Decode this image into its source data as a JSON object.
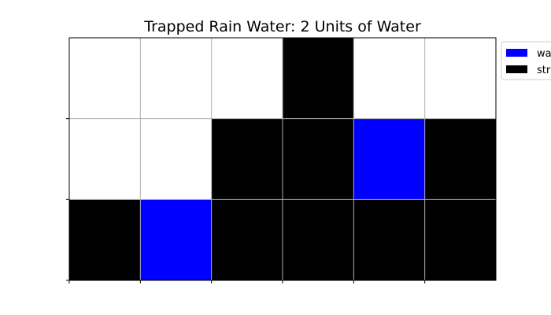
{
  "chart_data": {
    "type": "heatmap",
    "title": "Trapped Rain Water: 2 Units of Water",
    "xlabel": "",
    "ylabel": "",
    "columns": 6,
    "rows": 3,
    "xlim": [
      0,
      6
    ],
    "ylim": [
      0,
      3
    ],
    "heights": [
      1,
      0,
      2,
      3,
      1,
      2
    ],
    "water": [
      0,
      1,
      0,
      0,
      1,
      0
    ],
    "total_water_units": 2,
    "grid": true,
    "legend": {
      "placement": "outside-top-right",
      "entries": [
        {
          "label": "water",
          "color": "#0000ff"
        },
        {
          "label": "structure",
          "color": "#000000"
        }
      ]
    },
    "colors": {
      "water": "#0000ff",
      "structure": "#000000",
      "empty": "#ffffff",
      "grid": "#b0b0b0"
    }
  }
}
